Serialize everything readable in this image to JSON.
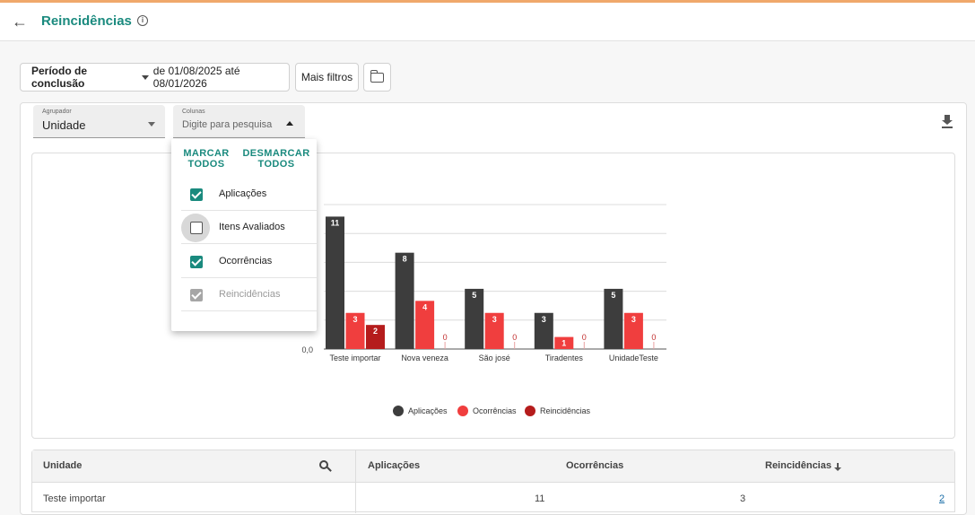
{
  "header": {
    "title": "Reincidências",
    "back_icon": "arrow-left-icon",
    "info_icon": "info-icon"
  },
  "filters": {
    "period_label": "Período de conclusão",
    "period_range": "de 01/08/2025 até 08/01/2026",
    "more_filters": "Mais filtros",
    "folder_icon": "folder-icon"
  },
  "group_select": {
    "label": "Agrupador",
    "value": "Unidade"
  },
  "columns_select": {
    "label": "Colunas",
    "placeholder": "Digite para pesquisa"
  },
  "columns_dropdown": {
    "mark_all": "MARCAR TODOS",
    "unmark_all": "DESMARCAR TODOS",
    "items": [
      {
        "label": "Aplicações",
        "checked": true,
        "disabled": false
      },
      {
        "label": "Itens Avaliados",
        "checked": false,
        "disabled": false
      },
      {
        "label": "Ocorrências",
        "checked": true,
        "disabled": false
      },
      {
        "label": "Reincidências",
        "checked": true,
        "disabled": true
      }
    ]
  },
  "chart_data": {
    "type": "bar",
    "categories": [
      "Teste importar",
      "Nova veneza",
      "São josé",
      "Tiradentes",
      "UnidadeTeste"
    ],
    "series": [
      {
        "name": "Aplicações",
        "values": [
          11,
          8,
          5,
          3,
          5
        ],
        "color": "#3d3d3d"
      },
      {
        "name": "Ocorrências",
        "values": [
          3,
          4,
          3,
          1,
          3
        ],
        "color": "#f03e3e"
      },
      {
        "name": "Reincidências",
        "values": [
          2,
          0,
          0,
          0,
          0
        ],
        "color": "#b51c1c"
      }
    ],
    "y_tick_label": "0,0",
    "ylim": [
      0,
      12
    ],
    "legend_position": "bottom"
  },
  "table": {
    "headers": {
      "unit": "Unidade",
      "applications": "Aplicações",
      "occurrences": "Ocorrências",
      "recurrences": "Reincidências"
    },
    "rows": [
      {
        "unit": "Teste importar",
        "applications": "11",
        "occurrences": "3",
        "recurrences": "2"
      }
    ]
  }
}
